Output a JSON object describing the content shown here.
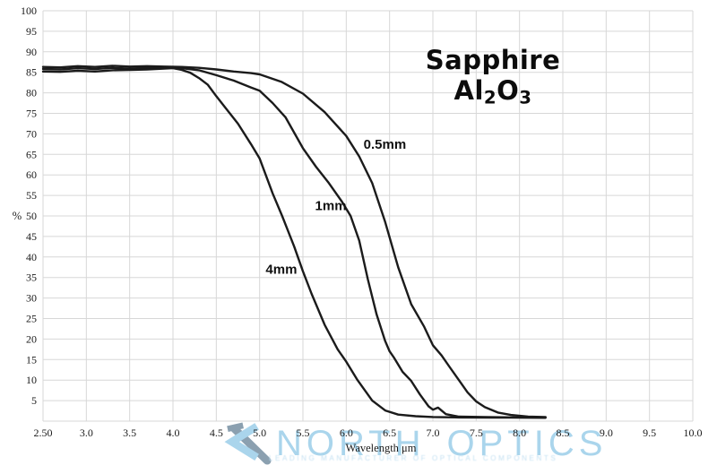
{
  "page": {
    "background": "#ffffff"
  },
  "chart_data": {
    "type": "line",
    "title": {
      "p1": "Sapphire Al",
      "s1": "2",
      "p2": "O",
      "s2": "3"
    },
    "xlabel": "Wavelength μm",
    "ylabel": "%",
    "xlim": [
      2.5,
      10.0
    ],
    "ylim": [
      0,
      100
    ],
    "grid": {
      "x_step": 0.5,
      "y_step": 5,
      "color": "#d7d7d7",
      "on": true
    },
    "line_color": "#1b1b1b",
    "legend": "none (inline curve labels)",
    "x_ticks": [
      {
        "v": 2.5,
        "label": "2.50"
      },
      {
        "v": 3.0,
        "label": "3.0"
      },
      {
        "v": 3.5,
        "label": "3.5"
      },
      {
        "v": 4.0,
        "label": "4.0"
      },
      {
        "v": 4.5,
        "label": "4.5"
      },
      {
        "v": 5.0,
        "label": "5.0"
      },
      {
        "v": 5.5,
        "label": "5.5"
      },
      {
        "v": 6.0,
        "label": "6.0"
      },
      {
        "v": 6.5,
        "label": "6.5"
      },
      {
        "v": 7.0,
        "label": "7.0"
      },
      {
        "v": 7.5,
        "label": "7.5"
      },
      {
        "v": 8.0,
        "label": "8.0"
      },
      {
        "v": 8.5,
        "label": "8.5"
      },
      {
        "v": 9.0,
        "label": "9.0"
      },
      {
        "v": 9.5,
        "label": "9.5"
      },
      {
        "v": 10.0,
        "label": "10.0"
      }
    ],
    "y_ticks": [
      5,
      10,
      15,
      20,
      25,
      30,
      35,
      40,
      45,
      50,
      55,
      60,
      65,
      70,
      75,
      80,
      85,
      90,
      95,
      100
    ],
    "series": [
      {
        "name": "0.5mm",
        "points": [
          [
            2.5,
            86.3
          ],
          [
            2.7,
            86.2
          ],
          [
            2.9,
            86.5
          ],
          [
            3.1,
            86.3
          ],
          [
            3.3,
            86.6
          ],
          [
            3.5,
            86.4
          ],
          [
            3.7,
            86.5
          ],
          [
            3.9,
            86.4
          ],
          [
            4.1,
            86.3
          ],
          [
            4.3,
            86.1
          ],
          [
            4.5,
            85.7
          ],
          [
            4.7,
            85.2
          ],
          [
            4.9,
            84.8
          ],
          [
            5.0,
            84.5
          ],
          [
            5.25,
            82.7
          ],
          [
            5.5,
            79.8
          ],
          [
            5.75,
            75.3
          ],
          [
            6.0,
            69.5
          ],
          [
            6.15,
            64.5
          ],
          [
            6.3,
            58.0
          ],
          [
            6.45,
            48.5
          ],
          [
            6.6,
            37.5
          ],
          [
            6.75,
            28.5
          ],
          [
            6.9,
            23.0
          ],
          [
            7.0,
            18.5
          ],
          [
            7.1,
            16.0
          ],
          [
            7.2,
            13.0
          ],
          [
            7.3,
            10.0
          ],
          [
            7.4,
            7.0
          ],
          [
            7.5,
            4.8
          ],
          [
            7.6,
            3.4
          ],
          [
            7.75,
            2.1
          ],
          [
            7.9,
            1.5
          ],
          [
            8.1,
            1.1
          ],
          [
            8.3,
            1.0
          ]
        ]
      },
      {
        "name": "1mm",
        "points": [
          [
            2.5,
            85.8
          ],
          [
            2.7,
            85.7
          ],
          [
            2.9,
            86.0
          ],
          [
            3.1,
            85.8
          ],
          [
            3.3,
            86.1
          ],
          [
            3.5,
            85.9
          ],
          [
            3.7,
            86.1
          ],
          [
            3.9,
            86.2
          ],
          [
            4.1,
            86.0
          ],
          [
            4.3,
            85.5
          ],
          [
            4.5,
            84.3
          ],
          [
            4.7,
            83.0
          ],
          [
            4.9,
            81.3
          ],
          [
            5.0,
            80.5
          ],
          [
            5.15,
            77.5
          ],
          [
            5.3,
            74.0
          ],
          [
            5.5,
            66.5
          ],
          [
            5.65,
            62.0
          ],
          [
            5.8,
            58.0
          ],
          [
            5.95,
            53.5
          ],
          [
            6.05,
            50.0
          ],
          [
            6.15,
            44.0
          ],
          [
            6.25,
            34.5
          ],
          [
            6.35,
            26.0
          ],
          [
            6.45,
            19.5
          ],
          [
            6.5,
            17.0
          ],
          [
            6.55,
            15.5
          ],
          [
            6.65,
            12.0
          ],
          [
            6.75,
            9.8
          ],
          [
            6.85,
            6.5
          ],
          [
            6.95,
            3.6
          ],
          [
            7.0,
            2.8
          ],
          [
            7.06,
            3.3
          ],
          [
            7.15,
            1.7
          ],
          [
            7.3,
            1.1
          ],
          [
            7.6,
            1.0
          ],
          [
            8.0,
            0.9
          ],
          [
            8.3,
            0.9
          ]
        ]
      },
      {
        "name": "4mm",
        "points": [
          [
            2.5,
            85.2
          ],
          [
            2.7,
            85.1
          ],
          [
            2.9,
            85.4
          ],
          [
            3.1,
            85.2
          ],
          [
            3.3,
            85.5
          ],
          [
            3.5,
            85.6
          ],
          [
            3.7,
            85.7
          ],
          [
            3.9,
            85.9
          ],
          [
            4.0,
            86.0
          ],
          [
            4.1,
            85.6
          ],
          [
            4.2,
            84.9
          ],
          [
            4.3,
            83.6
          ],
          [
            4.4,
            82.0
          ],
          [
            4.5,
            79.2
          ],
          [
            4.6,
            76.5
          ],
          [
            4.75,
            72.5
          ],
          [
            4.9,
            67.5
          ],
          [
            5.0,
            64.0
          ],
          [
            5.15,
            55.5
          ],
          [
            5.26,
            50.0
          ],
          [
            5.4,
            42.5
          ],
          [
            5.5,
            36.5
          ],
          [
            5.6,
            31.0
          ],
          [
            5.75,
            23.5
          ],
          [
            5.9,
            17.5
          ],
          [
            6.0,
            14.5
          ],
          [
            6.13,
            10.0
          ],
          [
            6.3,
            5.0
          ],
          [
            6.45,
            2.6
          ],
          [
            6.6,
            1.6
          ],
          [
            6.8,
            1.2
          ],
          [
            7.0,
            1.0
          ],
          [
            7.3,
            0.9
          ],
          [
            7.7,
            0.85
          ],
          [
            8.0,
            0.85
          ],
          [
            8.3,
            0.8
          ]
        ]
      }
    ],
    "annotations": [
      {
        "text": "0.5mm",
        "x": 6.2,
        "y": 67.5
      },
      {
        "text": "1mm",
        "x": 5.64,
        "y": 52.5
      },
      {
        "text": "4mm",
        "x": 5.07,
        "y": 37.0
      }
    ]
  },
  "watermark": {
    "brand_left": "NORTH",
    "brand_right": "OPTICS",
    "tagline": "LEADING MANUFACTURER OF OPTICAL COMPONENTS",
    "color": "#aad5ec",
    "logo_color_light": "#aad5ec",
    "logo_color_dark": "#8ba0b0"
  }
}
